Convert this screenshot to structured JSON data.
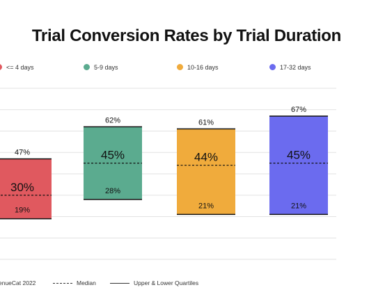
{
  "chart_data": {
    "type": "bar",
    "title": "Trial Conversion Rates by Trial Duration",
    "categories": [
      "<= 4 days",
      "5-9 days",
      "10-16 days",
      "17-32 days"
    ],
    "colors": [
      "#e0595f",
      "#5bab8f",
      "#f0ab3c",
      "#6b6bef"
    ],
    "lower_quartile": [
      19,
      28,
      21,
      21
    ],
    "median": [
      30,
      45,
      44,
      45
    ],
    "upper_quartile": [
      47,
      62,
      61,
      67
    ],
    "lower_labels": [
      "19%",
      "28%",
      "21%",
      "21%"
    ],
    "median_labels": [
      "30%",
      "45%",
      "44%",
      "45%"
    ],
    "upper_labels": [
      "47%",
      "62%",
      "61%",
      "67%"
    ],
    "ylim": [
      0,
      80
    ],
    "grid": true,
    "legend_position": "top"
  },
  "legend": {
    "items": [
      "<= 4 days",
      "5-9 days",
      "10-16 days",
      "17-32 days"
    ]
  },
  "footer": {
    "source": "enueCat 2022",
    "median_label": "Median",
    "quartile_label": "Upper & Lower Quartiles"
  }
}
